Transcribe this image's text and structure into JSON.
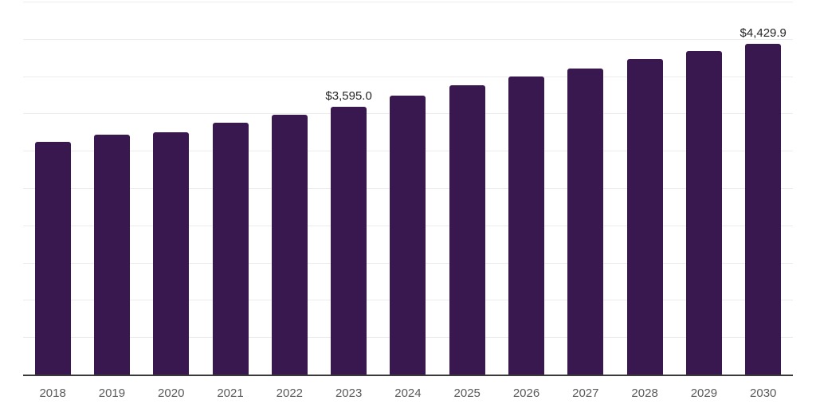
{
  "chart_data": {
    "type": "bar",
    "title": "",
    "xlabel": "",
    "ylabel": "",
    "categories": [
      "2018",
      "2019",
      "2020",
      "2021",
      "2022",
      "2023",
      "2024",
      "2025",
      "2026",
      "2027",
      "2028",
      "2029",
      "2030"
    ],
    "values": [
      3120,
      3220,
      3245,
      3375,
      3485,
      3595.0,
      3740,
      3875,
      4000,
      4105,
      4230,
      4335,
      4429.9
    ],
    "data_labels": [
      {
        "category": "2023",
        "text": "$3,595.0"
      },
      {
        "category": "2030",
        "text": "$4,429.9"
      }
    ],
    "ylim": [
      0,
      5000
    ],
    "grid_step": 500,
    "grid": true,
    "legend": "none",
    "colors": {
      "bar": "#38184E",
      "gridline": "#ececec",
      "axis_line": "#3a3a3a",
      "tick_label": "#5a5a5a",
      "data_label": "#262626"
    }
  }
}
